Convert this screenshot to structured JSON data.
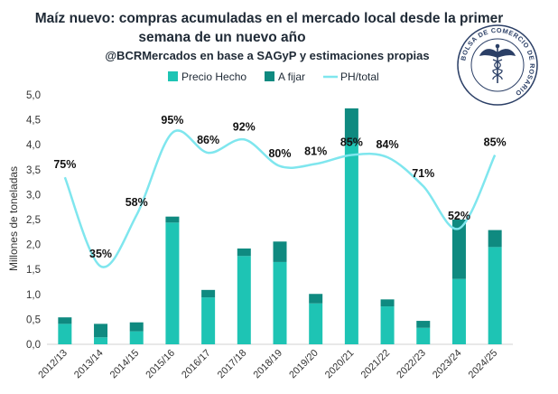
{
  "chart_data": {
    "type": "bar",
    "title_line1": "Maíz nuevo: compras acumuladas en el mercado local desde la primer",
    "title_line2": "semana de un nuevo año",
    "subtitle": "@BCRMercados en base a SAGyP y estimaciones propias",
    "ylabel": "Millones de toneladas",
    "ylim": [
      0,
      5
    ],
    "y_ticks": [
      "0,0",
      "0,5",
      "1,0",
      "1,5",
      "2,0",
      "2,5",
      "3,0",
      "3,5",
      "4,0",
      "4,5",
      "5,0"
    ],
    "y2lim": [
      0,
      1.12
    ],
    "categories": [
      "2012/13",
      "2013/14",
      "2014/15",
      "2015/16",
      "2016/17",
      "2017/18",
      "2018/19",
      "2019/20",
      "2020/21",
      "2021/22",
      "2022/23",
      "2023/24",
      "2024/25"
    ],
    "series": [
      {
        "name": "Precio Hecho",
        "values": [
          0.41,
          0.14,
          0.26,
          2.44,
          0.94,
          1.77,
          1.65,
          0.82,
          4.02,
          0.76,
          0.33,
          1.31,
          1.95
        ],
        "color": "#1ec4b4"
      },
      {
        "name": "A fijar",
        "values": [
          0.13,
          0.27,
          0.18,
          0.12,
          0.15,
          0.15,
          0.41,
          0.19,
          0.71,
          0.14,
          0.14,
          1.19,
          0.34
        ],
        "color": "#0f8a80"
      },
      {
        "name": "PH/total",
        "values": [
          0.75,
          0.35,
          0.58,
          0.95,
          0.86,
          0.92,
          0.8,
          0.81,
          0.85,
          0.84,
          0.71,
          0.52,
          0.85
        ],
        "labels": [
          "75%",
          "35%",
          "58%",
          "95%",
          "86%",
          "92%",
          "80%",
          "81%",
          "85%",
          "84%",
          "71%",
          "52%",
          "85%"
        ],
        "color": "#7fe6ee"
      }
    ],
    "legend_position": "top",
    "grid": false
  },
  "logo": {
    "ring_text": "BOLSA DE COMERCIO DE ROSARIO"
  }
}
